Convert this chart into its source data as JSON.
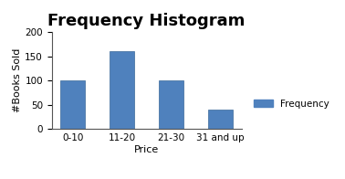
{
  "title": "Frequency Histogram",
  "xlabel": "Price",
  "ylabel": "#Books Sold",
  "categories": [
    "0-10",
    "11-20",
    "21-30",
    "31 and up"
  ],
  "values": [
    100,
    160,
    100,
    40
  ],
  "bar_color": "#4F81BD",
  "ylim": [
    0,
    200
  ],
  "yticks": [
    0,
    50,
    100,
    150,
    200
  ],
  "legend_label": "Frequency",
  "title_fontsize": 13,
  "label_fontsize": 8,
  "tick_fontsize": 7.5,
  "background_color": "#ffffff",
  "bar_width": 0.5
}
